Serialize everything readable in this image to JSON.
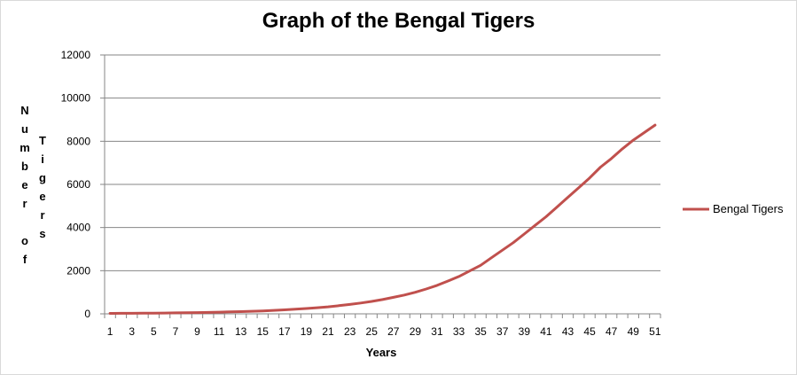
{
  "chart_data": {
    "type": "line",
    "title": "Graph of the Bengal Tigers",
    "xlabel": "Years",
    "ylabel_columns": [
      "Number of",
      "Tigers"
    ],
    "ylim": [
      0,
      12000
    ],
    "yticks": [
      0,
      2000,
      4000,
      6000,
      8000,
      10000,
      12000
    ],
    "xticks": [
      1,
      3,
      5,
      7,
      9,
      11,
      13,
      15,
      17,
      19,
      21,
      23,
      25,
      27,
      29,
      31,
      33,
      35,
      37,
      39,
      41,
      43,
      45,
      47,
      49,
      51
    ],
    "grid": "horizontal",
    "legend_position": "right",
    "x": [
      1,
      2,
      3,
      4,
      5,
      6,
      7,
      8,
      9,
      10,
      11,
      12,
      13,
      14,
      15,
      16,
      17,
      18,
      19,
      20,
      21,
      22,
      23,
      24,
      25,
      26,
      27,
      28,
      29,
      30,
      31,
      32,
      33,
      34,
      35,
      36,
      37,
      38,
      39,
      40,
      41,
      42,
      43,
      44,
      45,
      46,
      47,
      48,
      49,
      50,
      51
    ],
    "series": [
      {
        "name": "Bengal Tigers",
        "color": "#c0504d",
        "values": [
          20,
          23,
          26,
          29,
          33,
          38,
          44,
          50,
          58,
          67,
          77,
          89,
          103,
          119,
          137,
          159,
          184,
          212,
          245,
          283,
          326,
          377,
          434,
          500,
          577,
          663,
          765,
          870,
          1000,
          1150,
          1320,
          1520,
          1730,
          1990,
          2250,
          2600,
          2950,
          3300,
          3700,
          4100,
          4500,
          4950,
          5400,
          5850,
          6300,
          6800,
          7200,
          7650,
          8050,
          8400,
          8750
        ]
      }
    ]
  }
}
